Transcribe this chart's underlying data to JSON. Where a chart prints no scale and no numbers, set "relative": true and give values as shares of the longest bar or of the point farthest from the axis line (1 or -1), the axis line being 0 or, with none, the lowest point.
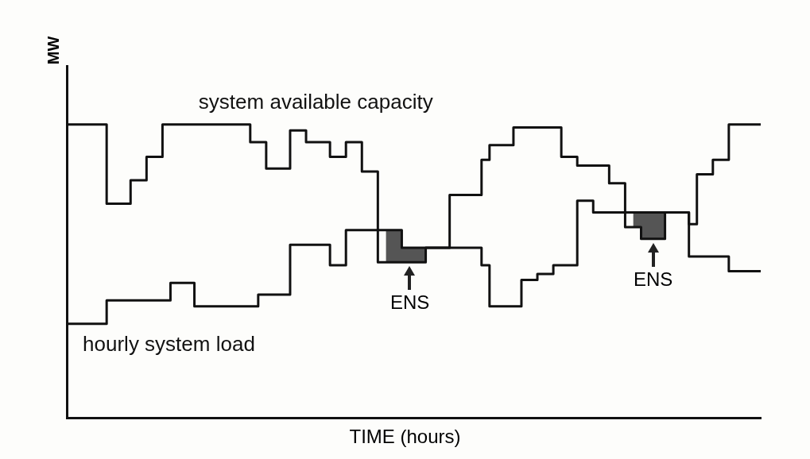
{
  "chart_data": {
    "type": "step",
    "xlabel": "TIME (hours)",
    "ylabel": "MW",
    "relative": true,
    "tick_labels": false,
    "categories": [
      null,
      null,
      null,
      null,
      null,
      null,
      null,
      null,
      null,
      null,
      null,
      null,
      null,
      null,
      null,
      null,
      null,
      null,
      null,
      null,
      null,
      null,
      null,
      null,
      null,
      null,
      null,
      null,
      null,
      null,
      null,
      null,
      null,
      null,
      null,
      null,
      null,
      null,
      null,
      null,
      null,
      null,
      null,
      null,
      null,
      null,
      null,
      null,
      null,
      null,
      null,
      null,
      null,
      null,
      null,
      null,
      null,
      null,
      null,
      null,
      null,
      null,
      null,
      null,
      null,
      null,
      null,
      null,
      null,
      null,
      null,
      null,
      null,
      null,
      null,
      null,
      null,
      null,
      null,
      null,
      null,
      null,
      null,
      null,
      null,
      null,
      null,
      null
    ],
    "series": [
      {
        "name": "system available capacity",
        "color": "#111111",
        "values": [
          1,
          1,
          1,
          1,
          1,
          1,
          0.73,
          0.73,
          0.73,
          0.81,
          0.81,
          0.89,
          0.89,
          1,
          1,
          1,
          1,
          1,
          1,
          1,
          1,
          1,
          1,
          1,
          0.94,
          0.94,
          0.85,
          0.85,
          0.85,
          0.98,
          0.98,
          0.94,
          0.94,
          0.94,
          0.89,
          0.89,
          0.94,
          0.94,
          0.84,
          0.84,
          0.53,
          0.53,
          0.53,
          0.53,
          0.53,
          0.53,
          0.58,
          0.58,
          0.58,
          0.76,
          0.76,
          0.76,
          0.76,
          0.88,
          0.93,
          0.93,
          0.93,
          0.99,
          0.99,
          0.99,
          0.99,
          0.99,
          0.99,
          0.89,
          0.89,
          0.86,
          0.86,
          0.86,
          0.86,
          0.8,
          0.8,
          0.65,
          0.65,
          0.61,
          0.61,
          0.61,
          0.7,
          0.7,
          0.7,
          0.66,
          0.83,
          0.83,
          0.88,
          0.88,
          1,
          1,
          1,
          1
        ]
      },
      {
        "name": "hourly system load",
        "color": "#111111",
        "lower": [
          null,
          null,
          null,
          null,
          null,
          null,
          null,
          null,
          null,
          null,
          null,
          null,
          null,
          null,
          null,
          null,
          null,
          null,
          null,
          null,
          null,
          null,
          null,
          null,
          null,
          null,
          null,
          null,
          null,
          null,
          null,
          null,
          null,
          null,
          null,
          null,
          null,
          null,
          null,
          null,
          0.53,
          0.53,
          0.53,
          0.53,
          0.53,
          0.53,
          0.58,
          null,
          null,
          null,
          null,
          null,
          null,
          null,
          null,
          null,
          null,
          null,
          null,
          null,
          null,
          null,
          null,
          null,
          null,
          null,
          null,
          null,
          null,
          null,
          null,
          0.65,
          0.65,
          0.61,
          0.61,
          0.61,
          0.7,
          null,
          null,
          null,
          null,
          null,
          null,
          null,
          null,
          null,
          null,
          null
        ],
        "upper": [
          null,
          null,
          null,
          null,
          null,
          null,
          null,
          null,
          null,
          null,
          null,
          null,
          null,
          null,
          null,
          null,
          null,
          null,
          null,
          null,
          null,
          null,
          null,
          null,
          null,
          null,
          null,
          null,
          null,
          null,
          null,
          null,
          null,
          null,
          null,
          null,
          null,
          null,
          null,
          null,
          0.64,
          0.64,
          0.64,
          0.58,
          0.58,
          0.58,
          0.58,
          null,
          null,
          null,
          null,
          null,
          null,
          null,
          null,
          null,
          null,
          null,
          null,
          null,
          null,
          null,
          null,
          null,
          null,
          null,
          null,
          null,
          null,
          null,
          null,
          0.7,
          0.7,
          0.7,
          0.7,
          0.7,
          0.7,
          null,
          null,
          null,
          null,
          null,
          null,
          null,
          null,
          null,
          null,
          null
        ],
        "values": [
          0.32,
          0.32,
          0.32,
          0.32,
          0.32,
          0.32,
          0.4,
          0.4,
          0.4,
          0.4,
          0.4,
          0.4,
          0.4,
          0.4,
          0.46,
          0.46,
          0.46,
          0.38,
          0.38,
          0.38,
          0.38,
          0.38,
          0.38,
          0.38,
          0.38,
          0.42,
          0.42,
          0.42,
          0.42,
          0.59,
          0.59,
          0.59,
          0.59,
          0.59,
          0.52,
          0.52,
          0.64,
          0.64,
          0.64,
          0.64,
          0.64,
          0.64,
          0.64,
          0.58,
          0.58,
          0.58,
          0.58,
          0.58,
          0.58,
          0.58,
          0.58,
          0.58,
          0.58,
          0.52,
          0.38,
          0.38,
          0.38,
          0.38,
          0.47,
          0.47,
          0.49,
          0.49,
          0.52,
          0.52,
          0.52,
          0.74,
          0.74,
          0.7,
          0.7,
          0.7,
          0.7,
          0.7,
          0.7,
          0.7,
          0.7,
          0.7,
          0.7,
          0.7,
          0.7,
          0.55,
          0.55,
          0.55,
          0.55,
          0.55,
          0.5,
          0.5,
          0.5,
          0.5
        ]
      }
    ],
    "annotations": [
      "ENS",
      "ENS"
    ]
  }
}
